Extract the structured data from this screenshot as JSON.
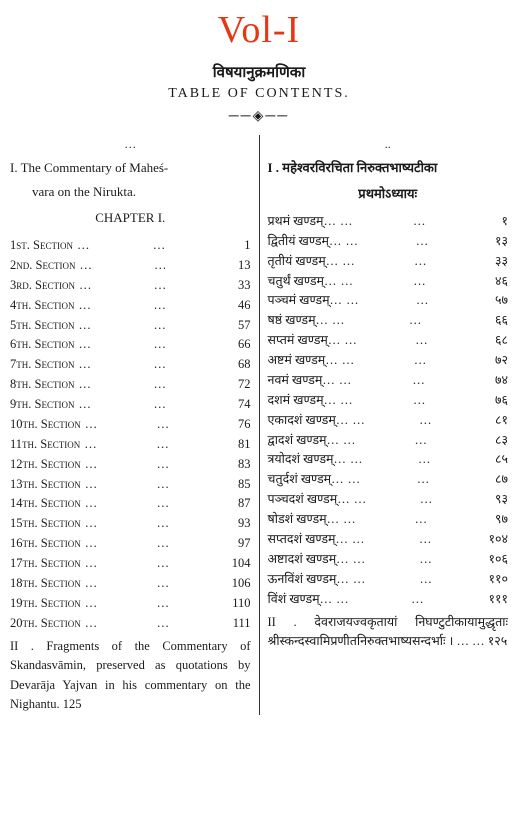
{
  "volume_label": "Vol-I",
  "heading_dev": "विषयानुक्रमणिका",
  "heading_en": "TABLE OF CONTENTS.",
  "ornament": "──◈──",
  "left": {
    "pre_dots": "…",
    "title_line1": "I. The Commentary of Maheś-",
    "title_line2": "vara on the Nirukta.",
    "chapter": "CHAPTER I.",
    "sections": [
      {
        "label": "1st. Section",
        "pg": "1"
      },
      {
        "label": "2nd. Section",
        "pg": "13"
      },
      {
        "label": "3rd. Section",
        "pg": "33"
      },
      {
        "label": "4th. Section",
        "pg": "46"
      },
      {
        "label": "5th. Section",
        "pg": "57"
      },
      {
        "label": "6th. Section",
        "pg": "66"
      },
      {
        "label": "7th. Section",
        "pg": "68"
      },
      {
        "label": "8th. Section",
        "pg": "72"
      },
      {
        "label": "9th. Section",
        "pg": "74"
      },
      {
        "label": "10th. Section",
        "pg": "76"
      },
      {
        "label": "11th. Section",
        "pg": "81"
      },
      {
        "label": "12th. Section",
        "pg": "83"
      },
      {
        "label": "13th. Section",
        "pg": "85"
      },
      {
        "label": "14th. Section",
        "pg": "87"
      },
      {
        "label": "15th. Section",
        "pg": "93"
      },
      {
        "label": "16th. Section",
        "pg": "97"
      },
      {
        "label": "17th. Section",
        "pg": "104"
      },
      {
        "label": "18th. Section",
        "pg": "106"
      },
      {
        "label": "19th. Section",
        "pg": "110"
      },
      {
        "label": "20th. Section",
        "pg": "111"
      }
    ],
    "fragment": "II . Fragments of the Commentary of Skandasvāmin, preserved as quotations by Devarāja Yajvan in his commentary on the Nighantu.   125"
  },
  "right": {
    "pre_dots": "..",
    "title": "I . महेश्वरविरचिता निरुक्तभाष्यटीका",
    "chapter": "प्रथमोऽध्यायः",
    "sections": [
      {
        "label": "प्रथमं   खण्डम्…",
        "pg": "१"
      },
      {
        "label": "द्वितीयं  खण्डम्…",
        "pg": "१३"
      },
      {
        "label": "तृतीयं   खण्डम्…",
        "pg": "३३"
      },
      {
        "label": "चतुर्थं   खण्डम्…",
        "pg": "४६"
      },
      {
        "label": "पञ्चमं   खण्डम्…",
        "pg": "५७"
      },
      {
        "label": "षष्ठं     खण्डम्…",
        "pg": "६६"
      },
      {
        "label": "सप्तमं   खण्डम्…",
        "pg": "६८"
      },
      {
        "label": "अष्टमं   खण्डम्…",
        "pg": "७२"
      },
      {
        "label": "नवमं    खण्डम्…",
        "pg": "७४"
      },
      {
        "label": "दशमं    खण्डम्…",
        "pg": "७६"
      },
      {
        "label": "एकादशं  खण्डम्…",
        "pg": "८१"
      },
      {
        "label": "द्वादशं   खण्डम्…",
        "pg": "८३"
      },
      {
        "label": "त्रयोदशं खण्डम्…",
        "pg": "८५"
      },
      {
        "label": "चतुर्दशं  खण्डम्…",
        "pg": "८७"
      },
      {
        "label": "पञ्चदशं  खण्डम्…",
        "pg": "९३"
      },
      {
        "label": "षोडशं   खण्डम्…",
        "pg": "९७"
      },
      {
        "label": "सप्तदशं  खण्डम्…",
        "pg": "१०४"
      },
      {
        "label": "अष्टादशं खण्डम्…",
        "pg": "१०६"
      },
      {
        "label": "ऊनविंशं खण्डम्…",
        "pg": "११०"
      },
      {
        "label": "विंशं    खण्डम्…",
        "pg": "१११"
      }
    ],
    "fragment": "II . देवराजयज्वकृतायां निघण्टुटीकायामुद्धृताः श्रीस्कन्दस्वामिप्रणीतनिरुक्तभाष्यसन्दर्भाः ।        …      …     १२५"
  }
}
